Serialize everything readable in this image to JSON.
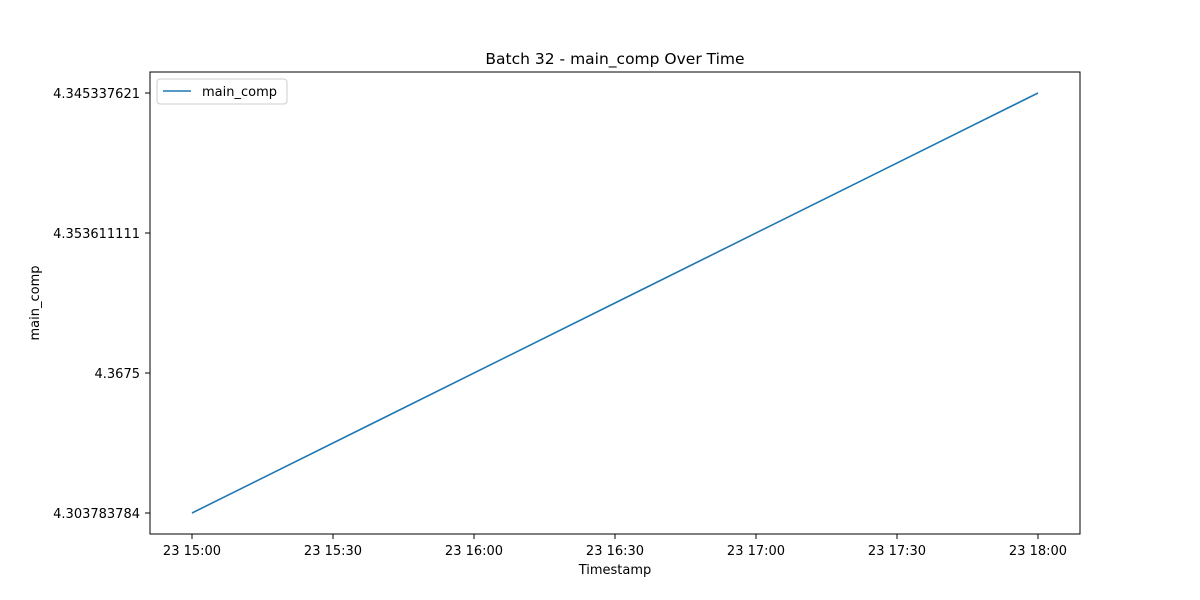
{
  "chart_data": {
    "type": "line",
    "title": "Batch 32 - main_comp Over Time",
    "xlabel": "Timestamp",
    "ylabel": "main_comp",
    "x_ticks": [
      "23 15:00",
      "23 15:30",
      "23 16:00",
      "23 16:30",
      "23 17:00",
      "23 17:30",
      "23 18:00"
    ],
    "y_ticks": [
      "4.303783784",
      "4.3675",
      "4.353611111",
      "4.345337621"
    ],
    "y_scale": "categorical",
    "grid": false,
    "legend_position": "upper-left",
    "series": [
      {
        "name": "main_comp",
        "color": "#1f77b4",
        "x": [
          "23 15:00",
          "23 18:00"
        ],
        "y": [
          "4.303783784",
          "4.345337621"
        ]
      }
    ]
  }
}
